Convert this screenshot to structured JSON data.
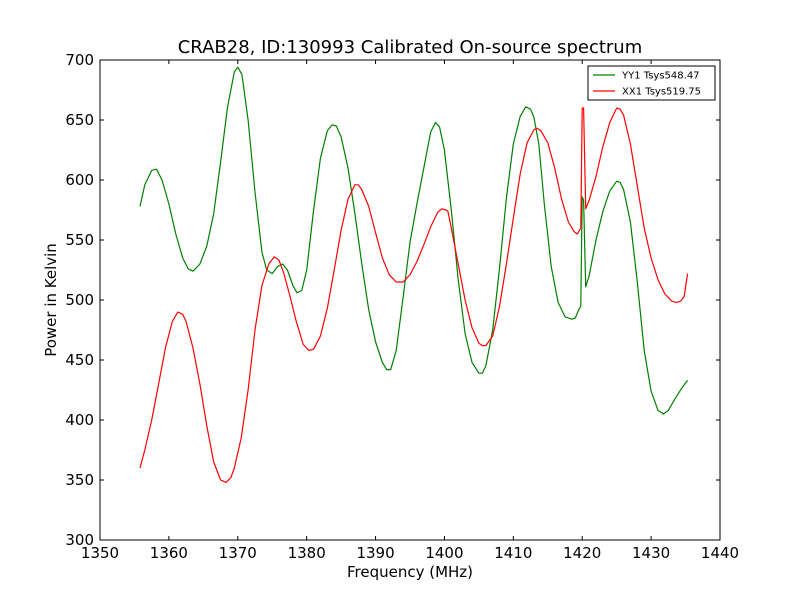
{
  "chart_data": {
    "type": "line",
    "title": "CRAB28, ID:130993 Calibrated On-source spectrum",
    "xlabel": "Frequency (MHz)",
    "ylabel": "Power in Kelvin",
    "xlim": [
      1350,
      1440
    ],
    "ylim": [
      300,
      700
    ],
    "xticks": [
      1350,
      1360,
      1370,
      1380,
      1390,
      1400,
      1410,
      1420,
      1430,
      1440
    ],
    "yticks": [
      300,
      350,
      400,
      450,
      500,
      550,
      600,
      650,
      700
    ],
    "grid": false,
    "legend_position": "top-right",
    "series": [
      {
        "name": "YY1 Tsys548.47",
        "color": "#008000",
        "x": [
          1355.8,
          1356.5,
          1357.5,
          1358.2,
          1359.0,
          1360.0,
          1361.0,
          1362.0,
          1362.8,
          1363.5,
          1364.5,
          1365.5,
          1366.5,
          1367.5,
          1368.5,
          1369.5,
          1370.0,
          1370.6,
          1371.5,
          1372.5,
          1373.5,
          1374.2,
          1375.0,
          1375.8,
          1376.5,
          1377.2,
          1378.0,
          1378.6,
          1379.3,
          1380.0,
          1381.0,
          1382.0,
          1383.0,
          1383.7,
          1384.3,
          1385.0,
          1386.0,
          1387.0,
          1388.0,
          1389.0,
          1390.0,
          1391.0,
          1391.6,
          1392.2,
          1393.0,
          1394.0,
          1395.0,
          1396.0,
          1397.0,
          1398.0,
          1398.7,
          1399.3,
          1400.0,
          1401.0,
          1402.0,
          1403.0,
          1404.0,
          1405.0,
          1405.5,
          1406.0,
          1407.0,
          1408.0,
          1409.0,
          1410.0,
          1411.0,
          1411.8,
          1412.5,
          1413.0,
          1413.7,
          1414.5,
          1415.5,
          1416.5,
          1417.5,
          1418.5,
          1419.0,
          1419.5,
          1419.8,
          1420.0,
          1420.2,
          1420.5,
          1421.0,
          1422.0,
          1423.0,
          1424.0,
          1425.0,
          1425.5,
          1426.0,
          1427.0,
          1428.0,
          1429.0,
          1430.0,
          1431.0,
          1431.8,
          1432.5,
          1433.5,
          1434.5,
          1435.3
        ],
        "values": [
          578,
          596,
          608,
          609,
          600,
          580,
          555,
          535,
          526,
          524,
          530,
          545,
          572,
          615,
          660,
          690,
          694,
          688,
          650,
          590,
          540,
          525,
          522,
          528,
          530,
          525,
          512,
          506,
          508,
          525,
          575,
          618,
          641,
          646,
          645,
          636,
          610,
          572,
          530,
          492,
          465,
          448,
          442,
          442,
          458,
          502,
          548,
          580,
          610,
          640,
          648,
          644,
          625,
          575,
          517,
          472,
          448,
          439,
          439,
          445,
          475,
          527,
          585,
          630,
          653,
          661,
          659,
          652,
          630,
          580,
          528,
          498,
          486,
          484,
          485,
          492,
          495,
          586,
          583,
          511,
          520,
          550,
          574,
          591,
          599,
          598,
          592,
          565,
          515,
          458,
          424,
          408,
          405,
          408,
          418,
          427,
          433
        ]
      },
      {
        "name": "XX1 Tsys519.75",
        "color": "#ff0000",
        "x": [
          1355.8,
          1356.5,
          1357.5,
          1358.5,
          1359.5,
          1360.5,
          1361.3,
          1362.0,
          1362.5,
          1363.5,
          1364.5,
          1365.5,
          1366.5,
          1367.5,
          1368.3,
          1369.0,
          1369.5,
          1370.5,
          1371.5,
          1372.5,
          1373.5,
          1374.5,
          1375.3,
          1376.0,
          1376.7,
          1377.5,
          1378.5,
          1379.5,
          1380.3,
          1381.0,
          1382.0,
          1383.0,
          1384.0,
          1385.0,
          1386.0,
          1387.0,
          1387.5,
          1388.0,
          1389.0,
          1390.0,
          1391.0,
          1392.0,
          1393.0,
          1394.0,
          1395.0,
          1396.0,
          1397.0,
          1398.0,
          1399.0,
          1399.6,
          1400.2,
          1400.5,
          1401.0,
          1402.0,
          1403.0,
          1404.0,
          1405.0,
          1405.5,
          1406.0,
          1407.0,
          1408.0,
          1409.0,
          1410.0,
          1411.0,
          1412.0,
          1413.0,
          1413.5,
          1414.0,
          1415.0,
          1416.0,
          1417.0,
          1418.0,
          1418.8,
          1419.3,
          1419.8,
          1420.0,
          1420.2,
          1420.5,
          1421.0,
          1422.0,
          1423.0,
          1424.0,
          1425.0,
          1425.5,
          1426.0,
          1427.0,
          1428.0,
          1429.0,
          1430.0,
          1431.0,
          1432.0,
          1433.0,
          1433.7,
          1434.3,
          1434.8,
          1435.3
        ],
        "values": [
          360,
          375,
          400,
          430,
          460,
          482,
          490,
          488,
          482,
          460,
          430,
          395,
          365,
          350,
          348,
          352,
          360,
          385,
          425,
          475,
          512,
          530,
          536,
          533,
          522,
          505,
          482,
          463,
          458,
          459,
          470,
          493,
          525,
          558,
          584,
          596,
          596,
          592,
          578,
          556,
          535,
          521,
          515,
          515,
          521,
          532,
          546,
          561,
          573,
          576,
          575,
          574,
          560,
          530,
          500,
          477,
          464,
          462,
          462,
          470,
          495,
          530,
          568,
          605,
          631,
          642,
          643,
          641,
          631,
          610,
          584,
          565,
          557,
          555,
          560,
          660,
          660,
          576,
          583,
          603,
          628,
          648,
          660,
          659,
          654,
          630,
          595,
          560,
          535,
          517,
          505,
          499,
          498,
          499,
          503,
          522
        ]
      }
    ]
  }
}
